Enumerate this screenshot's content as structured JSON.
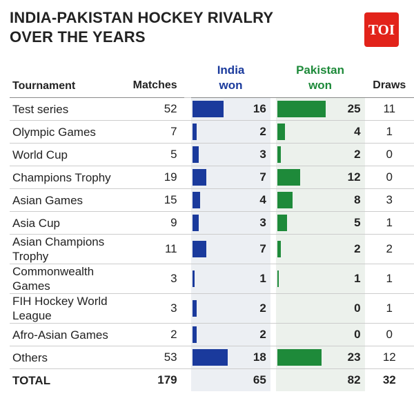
{
  "header": {
    "title": "INDIA-PAKISTAN HOCKEY RIVALRY OVER THE YEARS",
    "logo": "TOI"
  },
  "table": {
    "columns": [
      "Tournament",
      "Matches",
      "India won",
      "Pakistan won",
      "Draws"
    ],
    "rows": [
      [
        "Test series",
        52,
        16,
        25,
        11
      ],
      [
        "Olympic Games",
        7,
        2,
        4,
        1
      ],
      [
        "World Cup",
        5,
        3,
        2,
        0
      ],
      [
        "Champions Trophy",
        19,
        7,
        12,
        0
      ],
      [
        "Asian Games",
        15,
        4,
        8,
        3
      ],
      [
        "Asia Cup",
        9,
        3,
        5,
        1
      ],
      [
        "Asian Champions Trophy",
        11,
        7,
        2,
        2
      ],
      [
        "Commonwealth Games",
        3,
        1,
        1,
        1
      ],
      [
        "FIH Hockey World League",
        3,
        2,
        0,
        1
      ],
      [
        "Afro-Asian Games",
        2,
        2,
        0,
        0
      ],
      [
        "Others",
        53,
        18,
        23,
        12
      ]
    ],
    "total": [
      "TOTAL",
      179,
      65,
      82,
      32
    ]
  }
}
